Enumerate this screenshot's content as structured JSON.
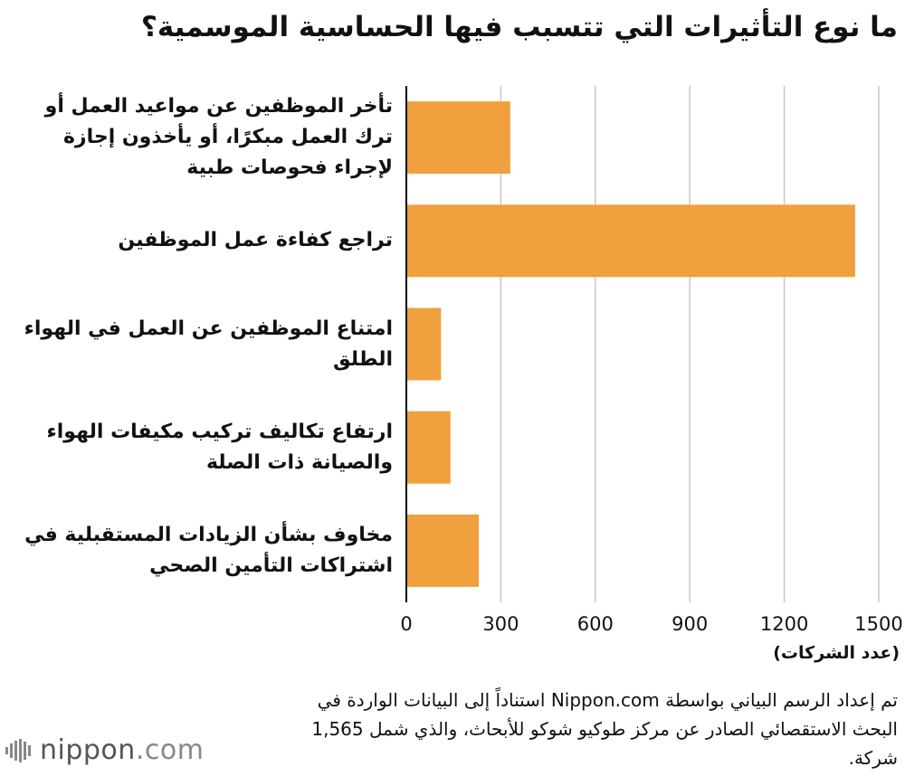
{
  "title": "ما نوع التأثيرات التي تتسبب فيها الحساسية الموسمية؟",
  "chart_data": {
    "type": "bar",
    "orientation": "horizontal",
    "categories": [
      "تأخر الموظفين عن مواعيد العمل أو ترك العمل مبكرًا، أو يأخذون إجازة لإجراء فحوصات طبية",
      "تراجع كفاءة عمل الموظفين",
      "امتناع الموظفين عن العمل في الهواء الطلق",
      "ارتفاع تكاليف تركيب مكيفات الهواء والصيانة ذات الصلة",
      "مخاوف بشأن الزيادات المستقبلية في اشتراكات التأمين الصحي"
    ],
    "values": [
      330,
      1425,
      110,
      140,
      230
    ],
    "xlim": [
      0,
      1500
    ],
    "ticks": [
      0,
      300,
      600,
      900,
      1200,
      1500
    ],
    "tick_labels": [
      "0",
      "300",
      "600",
      "900",
      "1200",
      "1500"
    ],
    "xlabel": "(عدد الشركات)",
    "grid": true,
    "bar_color": "#F0A03C"
  },
  "source": "تم إعداد الرسم البياني بواسطة Nippon.com استناداً إلى البيانات الواردة في البحث الاستقصائي الصادر عن مركز طوكيو شوكو للأبحاث، والذي شمل 1,565 شركة.",
  "logo": {
    "name": "nippon",
    "suffix": ".com",
    "icon": "nippon-logo-mark-icon"
  }
}
